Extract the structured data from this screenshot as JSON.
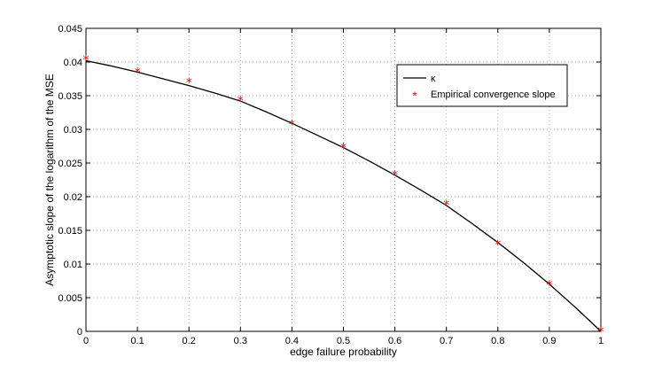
{
  "chart_data": {
    "type": "line",
    "title": "",
    "xlabel": "edge failure probability",
    "ylabel": "Asymptotic slope of the logarithm of the MSE",
    "xlim": [
      0,
      1
    ],
    "ylim": [
      0,
      0.045
    ],
    "x_ticks": [
      "0",
      "0.1",
      "0.2",
      "0.3",
      "0.4",
      "0.5",
      "0.6",
      "0.7",
      "0.8",
      "0.9",
      "1"
    ],
    "y_ticks": [
      "0",
      "0.005",
      "0.01",
      "0.015",
      "0.02",
      "0.025",
      "0.03",
      "0.035",
      "0.04",
      "0.045"
    ],
    "grid": true,
    "legend_position": "top-right",
    "series": [
      {
        "name": "κ",
        "style": "line",
        "color": "#000000",
        "x": [
          0,
          0.05,
          0.1,
          0.15,
          0.2,
          0.25,
          0.3,
          0.35,
          0.4,
          0.45,
          0.5,
          0.55,
          0.6,
          0.65,
          0.7,
          0.75,
          0.8,
          0.85,
          0.9,
          0.95,
          1.0
        ],
        "y": [
          0.0402,
          0.0394,
          0.0385,
          0.0375,
          0.0365,
          0.0354,
          0.0342,
          0.0326,
          0.0309,
          0.0291,
          0.0273,
          0.0253,
          0.0232,
          0.021,
          0.0187,
          0.016,
          0.0132,
          0.0102,
          0.007,
          0.0036,
          0.0
        ]
      },
      {
        "name": "Empirical convergence slope",
        "style": "marker",
        "marker": "*",
        "color": "#ff0000",
        "x": [
          0,
          0.1,
          0.2,
          0.3,
          0.4,
          0.5,
          0.6,
          0.7,
          0.8,
          0.9,
          1.0
        ],
        "y": [
          0.0403,
          0.0385,
          0.037,
          0.0343,
          0.0307,
          0.0273,
          0.0232,
          0.0188,
          0.0129,
          0.0069,
          0.0
        ]
      }
    ]
  }
}
